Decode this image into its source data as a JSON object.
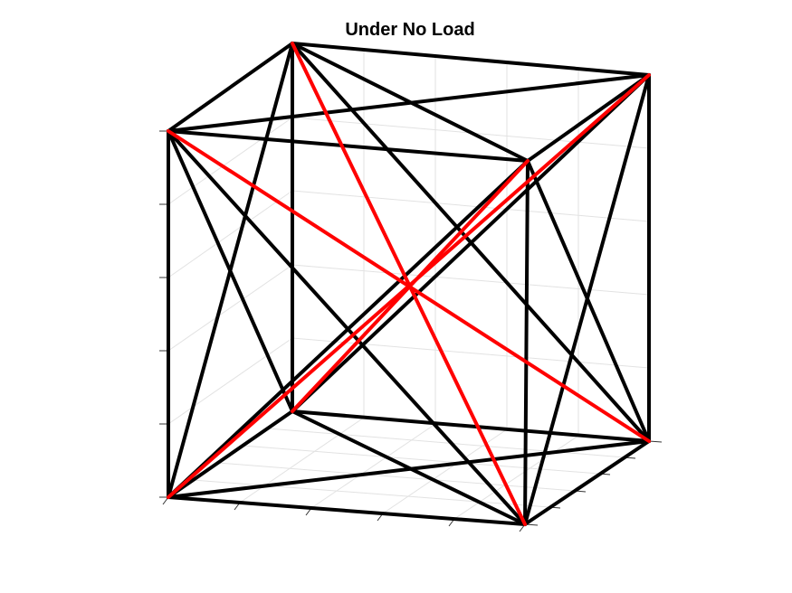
{
  "title": "Under No Load"
}
